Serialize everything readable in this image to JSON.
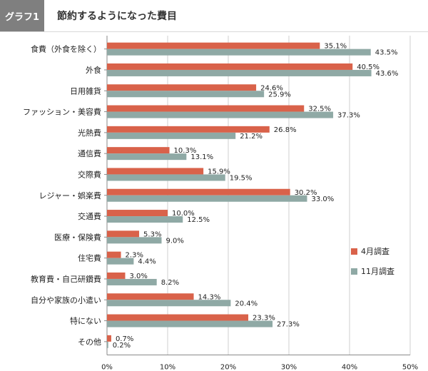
{
  "header": {
    "badge": "グラフ1",
    "title": "節約するようになった費目"
  },
  "colors": {
    "s1": "#d9624a",
    "s2": "#8fa9a5",
    "grid": "#cfcfcf",
    "axis": "#8a8a8a"
  },
  "chart_data": {
    "type": "bar",
    "orientation": "horizontal",
    "categories": [
      "食費（外食を除く）",
      "外食",
      "日用雑貨",
      "ファッション・美容費",
      "光熱費",
      "通信費",
      "交際費",
      "レジャー・娯楽費",
      "交通費",
      "医療・保険費",
      "住宅費",
      "教育費・自己研鑽費",
      "自分や家族の小遣い",
      "特にない",
      "その他"
    ],
    "series": [
      {
        "name": "4月調査",
        "values": [
          35.1,
          40.5,
          24.6,
          32.5,
          26.8,
          10.3,
          15.9,
          30.2,
          10.0,
          5.3,
          2.3,
          3.0,
          14.3,
          23.3,
          0.7
        ]
      },
      {
        "name": "11月調査",
        "values": [
          43.5,
          43.6,
          25.9,
          37.3,
          21.2,
          13.1,
          19.5,
          33.0,
          12.5,
          9.0,
          4.4,
          8.2,
          20.4,
          27.3,
          0.2
        ]
      }
    ],
    "xlim": [
      0,
      50
    ],
    "xticks": [
      0,
      10,
      20,
      30,
      40,
      50
    ],
    "xtick_labels": [
      "0%",
      "10%",
      "20%",
      "30%",
      "40%",
      "50%"
    ],
    "value_labels": [
      [
        "35.1%",
        "40.5%",
        "24.6%",
        "32.5%",
        "26.8%",
        "10.3%",
        "15.9%",
        "30.2%",
        "10.0%",
        "5.3%",
        "2.3%",
        "3.0%",
        "14.3%",
        "23.3%",
        "0.7%"
      ],
      [
        "43.5%",
        "43.6%",
        "25.9%",
        "37.3%",
        "21.2%",
        "13.1%",
        "19.5%",
        "33.0%",
        "12.5%",
        "9.0%",
        "4.4%",
        "8.2%",
        "20.4%",
        "27.3%",
        "0.2%"
      ]
    ],
    "grid": true,
    "legend": "right"
  }
}
